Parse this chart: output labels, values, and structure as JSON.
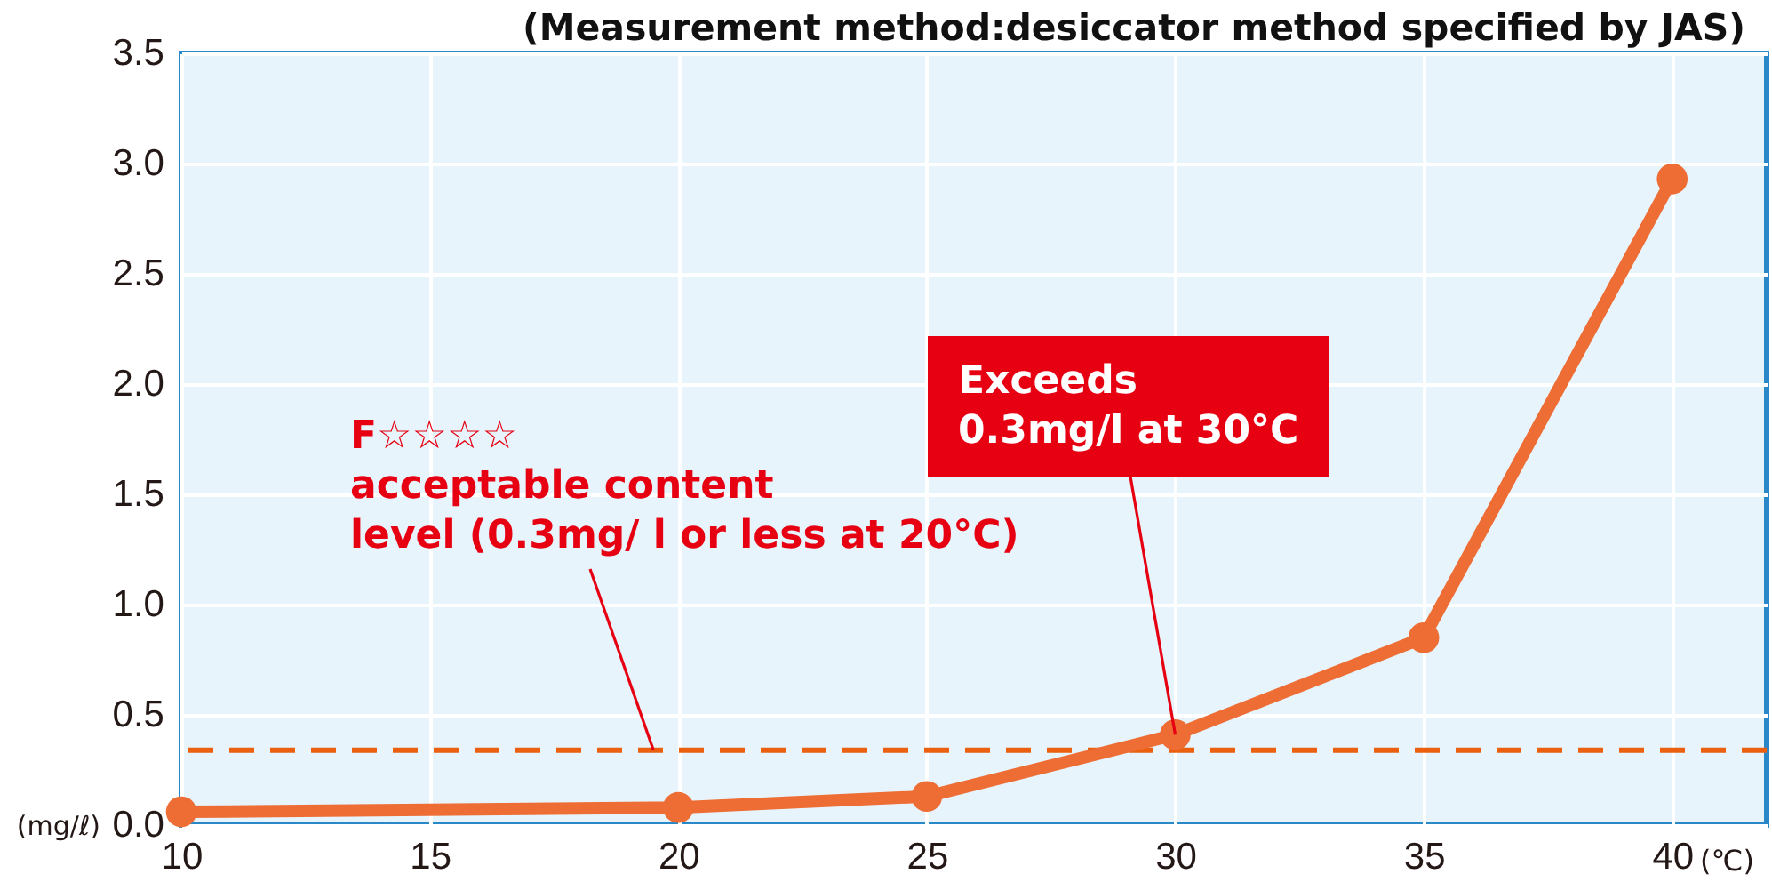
{
  "chart_data": {
    "type": "line",
    "title": "(Measurement method:desiccator method specified by JAS)",
    "xlabel": "(℃)",
    "ylabel": "(mg/ℓ)",
    "x": [
      10,
      20,
      25,
      30,
      35,
      40
    ],
    "series": [
      {
        "color": "#ed6d35",
        "values": [
          0.06,
          0.08,
          0.13,
          0.41,
          0.85,
          2.93
        ]
      }
    ],
    "xlim": [
      10,
      41.9
    ],
    "ylim": [
      0,
      3.5
    ],
    "xticks": [
      10,
      15,
      20,
      25,
      30,
      35,
      40
    ],
    "yticks": [
      {
        "value": 0,
        "label": "0.0"
      },
      0.5,
      {
        "value": 1,
        "label": "1.0"
      },
      1.5,
      {
        "value": 2,
        "label": "2.0"
      },
      2.5,
      {
        "value": 3,
        "label": "3.0"
      },
      3.5
    ],
    "grid": true,
    "marker": "circle",
    "line_style": "solid",
    "ref_lines": [
      {
        "axis": "y",
        "value": 0.34,
        "color": "#ea600f",
        "line_style": "dashed"
      }
    ],
    "annotations": [
      "F☆☆☆☆",
      {
        "text": "acceptable content\nlevel (0.3mg/ l or less at 20°C)",
        "x": 19.5,
        "y": 0.34
      },
      {
        "text": "Exceeds\n0.3mg/l at 30°C",
        "x": 30,
        "y": 0.41
      }
    ]
  }
}
